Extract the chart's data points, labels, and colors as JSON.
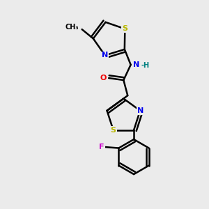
{
  "bg_color": "#ebebeb",
  "bond_color": "#000000",
  "bond_width": 1.8,
  "atom_colors": {
    "S": "#b8b800",
    "N": "#0000ee",
    "O": "#ee0000",
    "F": "#cc00cc",
    "H": "#008080",
    "C": "#000000"
  }
}
